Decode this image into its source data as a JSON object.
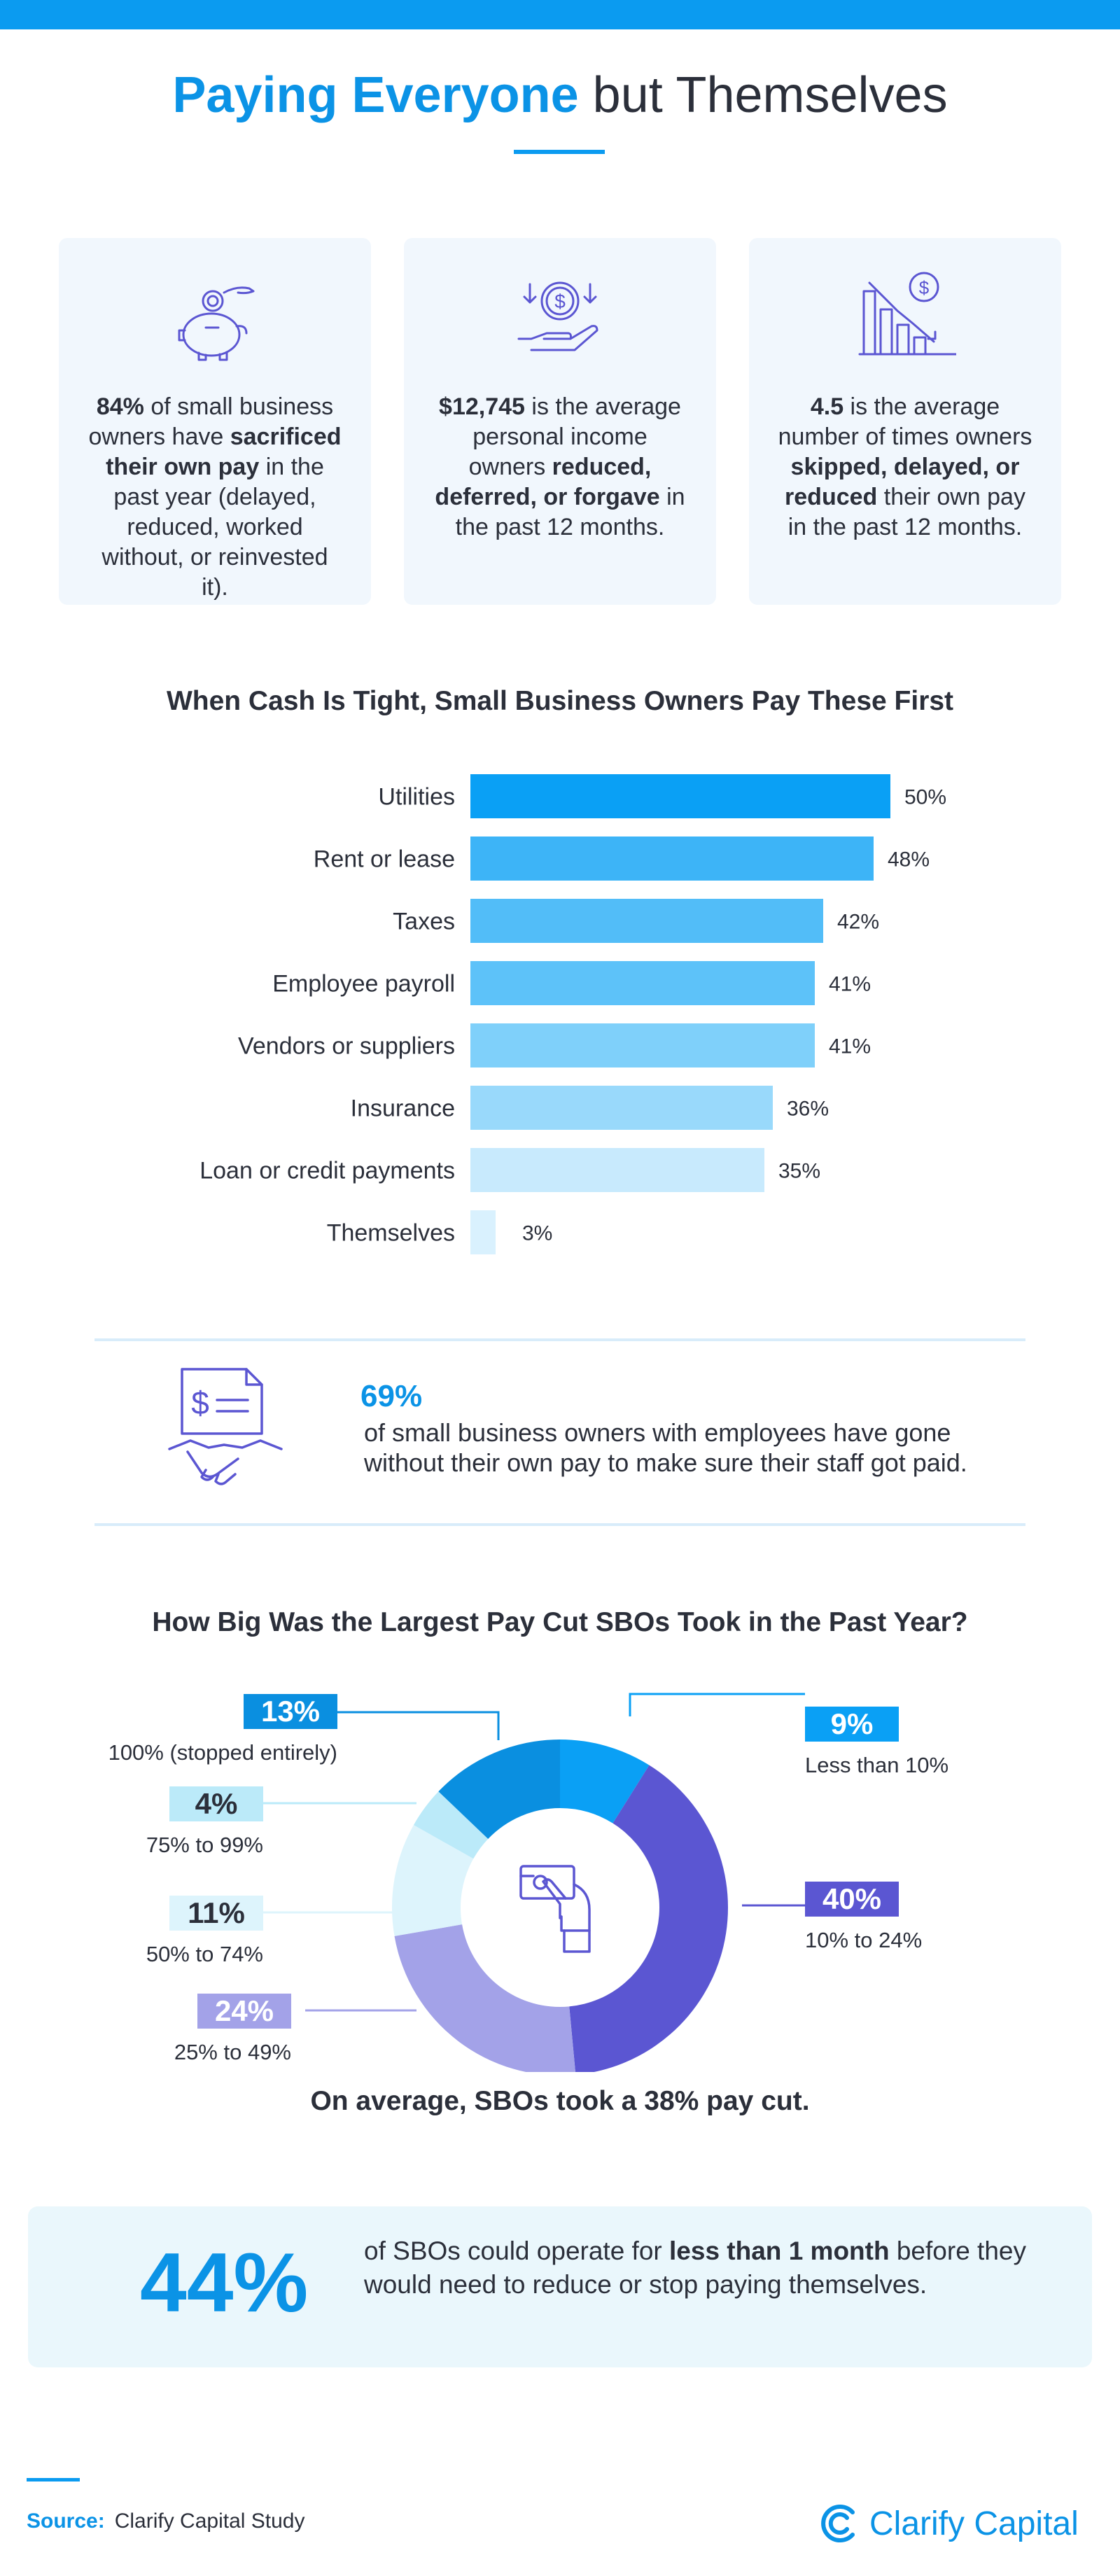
{
  "header": {
    "title_highlight": "Paying Everyone",
    "title_rest": " but Themselves"
  },
  "stats": [
    {
      "icon": "piggy-bank-icon",
      "parts": [
        {
          "t": "84%",
          "b": true
        },
        {
          "t": " of small business owners have ",
          "b": false
        },
        {
          "t": "sacrificed their own pay",
          "b": true
        },
        {
          "t": " in the past year (delayed, reduced, worked without, or reinvested it).",
          "b": false
        }
      ]
    },
    {
      "icon": "hand-coin-icon",
      "parts": [
        {
          "t": "$12,745",
          "b": true
        },
        {
          "t": " is the average personal income owners ",
          "b": false
        },
        {
          "t": "reduced, deferred, or forgave",
          "b": true
        },
        {
          "t": " in the past 12 months.",
          "b": false
        }
      ]
    },
    {
      "icon": "declining-chart-icon",
      "parts": [
        {
          "t": "4.5",
          "b": true
        },
        {
          "t": " is the average number of times owners ",
          "b": false
        },
        {
          "t": "skipped, delayed, or reduced",
          "b": true
        },
        {
          "t": " their own pay in the past 12 months.",
          "b": false
        }
      ]
    }
  ],
  "bar_section_title": "When Cash Is Tight, Small Business Owners Pay These First",
  "callout": {
    "icon": "invoice-handshake-icon",
    "pct": "69%",
    "text": "of small business owners with employees have gone without their own pay to make sure their staff got paid."
  },
  "donut_section_title": "How Big Was the Largest Pay Cut SBOs Took in the Past Year?",
  "donut_center_icon": "hand-card-icon",
  "donut_caption": "On average, SBOs took a 38% pay cut.",
  "bottom": {
    "pct": "44%",
    "parts": [
      {
        "t": "of SBOs could operate for ",
        "b": false
      },
      {
        "t": "less than 1 month",
        "b": true
      },
      {
        "t": " before they would need to reduce or stop paying themselves.",
        "b": false
      }
    ]
  },
  "footer": {
    "source_label": "Source:",
    "source_text": "Clarify Capital Study",
    "brand": "Clarify Capital",
    "brand_icon": "clarify-logo-icon"
  },
  "chart_data": [
    {
      "type": "bar",
      "orientation": "horizontal",
      "title": "When Cash Is Tight, Small Business Owners Pay These First",
      "categories": [
        "Utilities",
        "Rent or lease",
        "Taxes",
        "Employee payroll",
        "Vendors or suppliers",
        "Insurance",
        "Loan or credit payments",
        "Themselves"
      ],
      "values": [
        50,
        48,
        42,
        41,
        41,
        36,
        35,
        3
      ],
      "value_labels": [
        "50%",
        "48%",
        "42%",
        "41%",
        "41%",
        "36%",
        "35%",
        "3%"
      ],
      "colors": [
        "#0aa0f5",
        "#3db4f7",
        "#52bdf8",
        "#5dc2f9",
        "#7fd0fa",
        "#99d9fb",
        "#c8eafd",
        "#d9f1fe"
      ],
      "grid": false
    },
    {
      "type": "pie",
      "donut": true,
      "title": "How Big Was the Largest Pay Cut SBOs Took in the Past Year?",
      "categories": [
        "Less than 10%",
        "10% to 24%",
        "25% to 49%",
        "50% to 74%",
        "75% to 99%",
        "100% (stopped entirely)"
      ],
      "values": [
        9,
        40,
        24,
        11,
        4,
        13
      ],
      "value_labels": [
        "9%",
        "40%",
        "24%",
        "11%",
        "4%",
        "13%"
      ],
      "colors": [
        "#0aa0f5",
        "#5b56d2",
        "#a3a2e8",
        "#ddf4fc",
        "#bbeaf9",
        "#0a8fe0"
      ]
    }
  ]
}
